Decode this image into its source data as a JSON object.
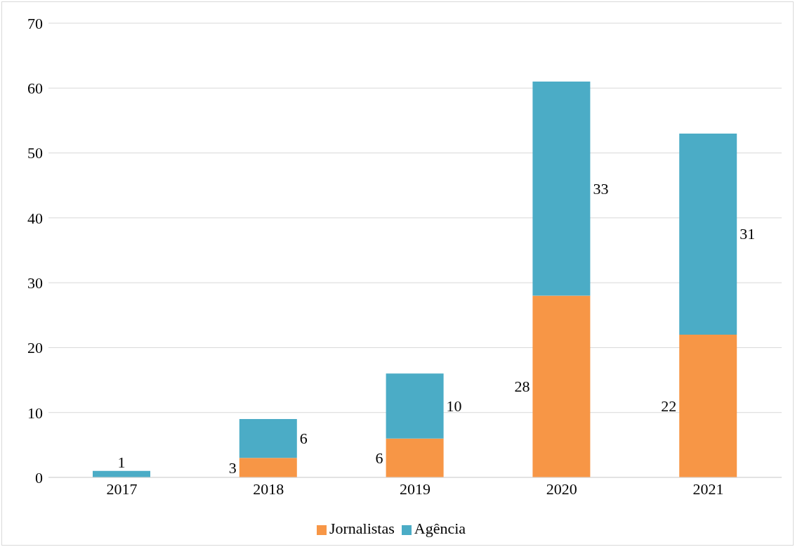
{
  "chart_data": {
    "type": "bar",
    "stacked": true,
    "categories": [
      "2017",
      "2018",
      "2019",
      "2020",
      "2021"
    ],
    "series": [
      {
        "name": "Jornalistas",
        "color": "#f79646",
        "values": [
          null,
          3,
          6,
          28,
          22
        ]
      },
      {
        "name": "Agência",
        "color": "#4bacc6",
        "values": [
          1,
          6,
          10,
          33,
          31
        ]
      }
    ],
    "ylim": [
      0,
      70
    ],
    "yticks": [
      0,
      10,
      20,
      30,
      40,
      50,
      60,
      70
    ],
    "grid": "y",
    "legend": "bottom",
    "data_labels": true
  }
}
